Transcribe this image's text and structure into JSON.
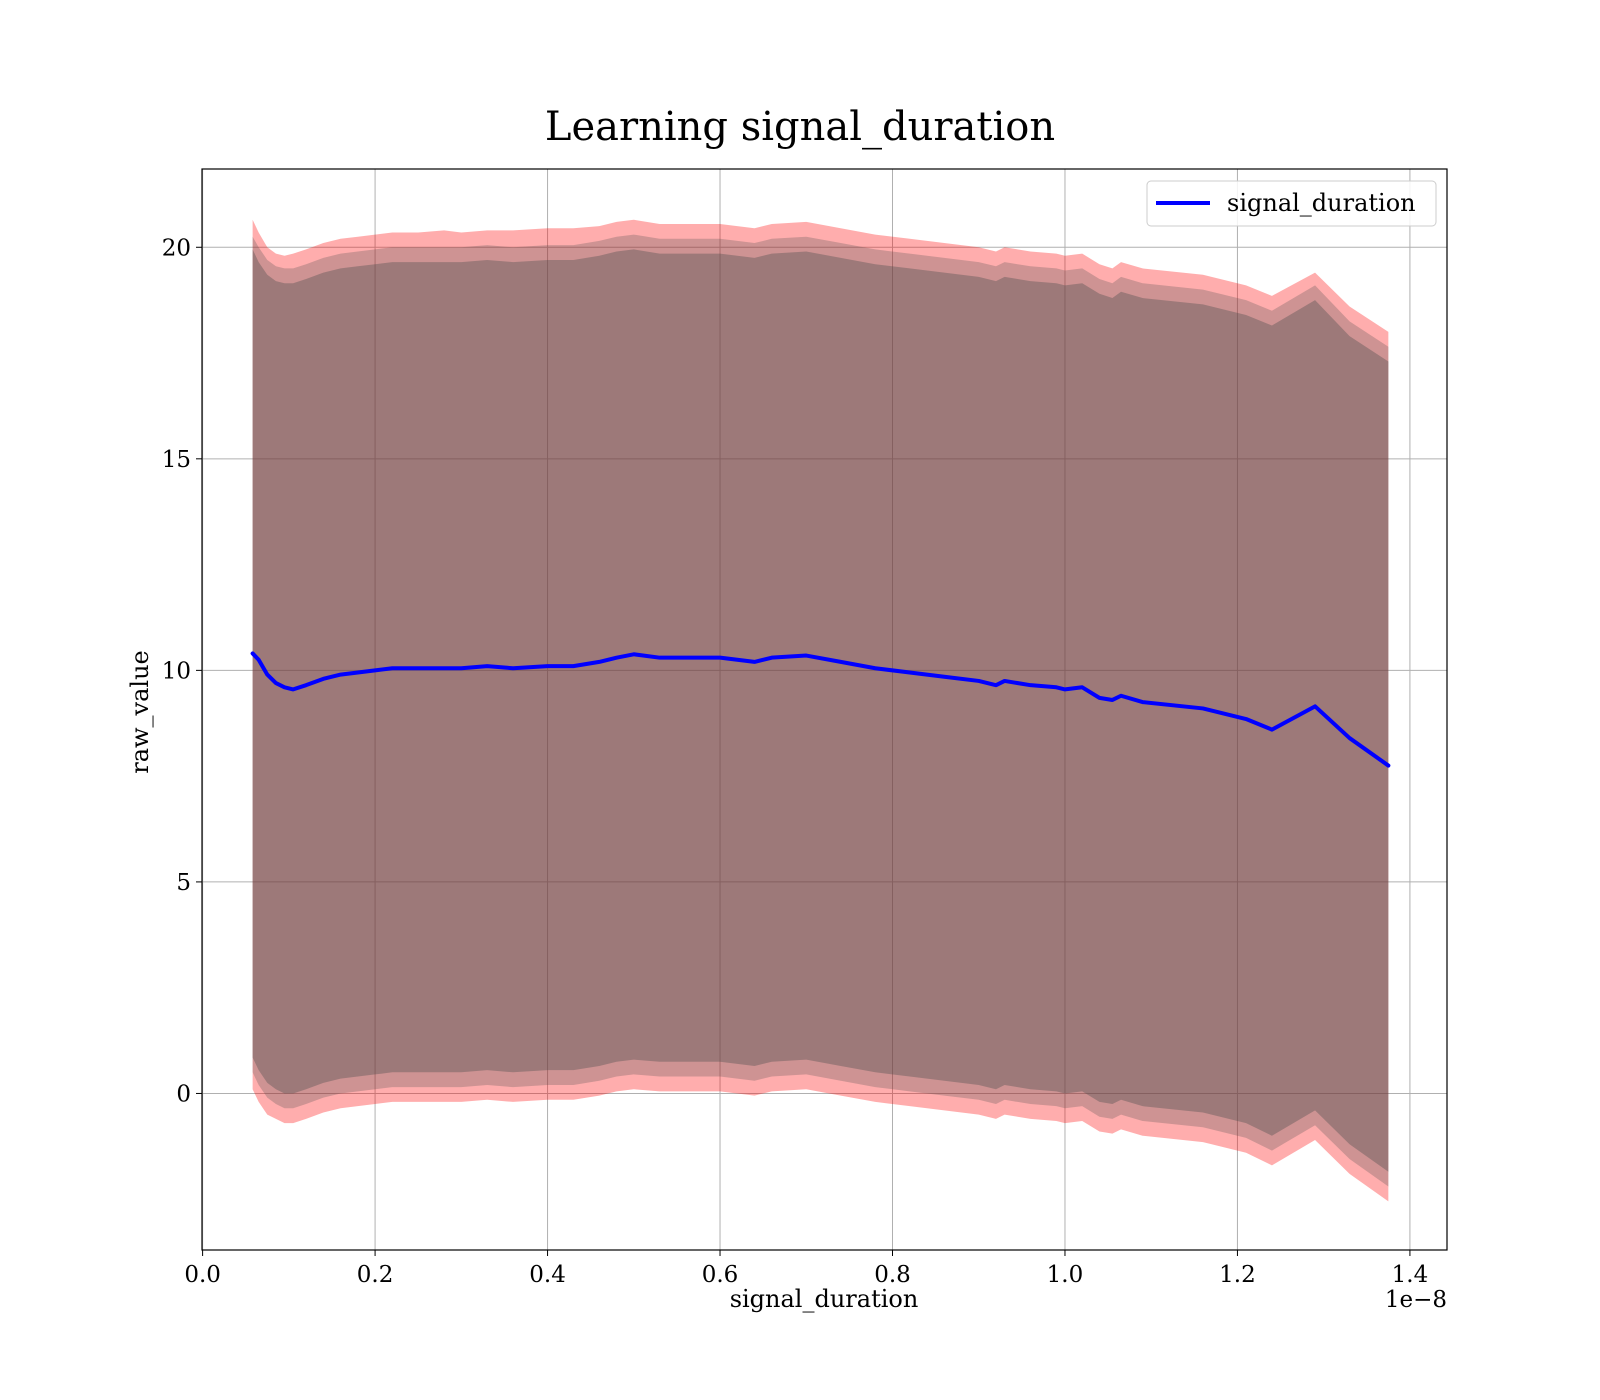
{
  "chart_data": {
    "type": "line",
    "title": "Learning signal_duration",
    "xlabel": "signal_duration",
    "ylabel": "raw_value",
    "x_offset_text": "1e−8",
    "x_ticks": [
      "0.0",
      "0.2",
      "0.4",
      "0.6",
      "0.8",
      "1.0",
      "1.2",
      "1.4"
    ],
    "y_ticks": [
      "0",
      "5",
      "10",
      "15",
      "20"
    ],
    "xlim": [
      -0.0007,
      1.443
    ],
    "ylim": [
      -3.7,
      21.85
    ],
    "grid": true,
    "legend_position": "top-right",
    "colors": {
      "line": "#0000ff",
      "band": "#ff0000",
      "inner_band": "#505050",
      "grid": "#b0b0b0"
    },
    "series": [
      {
        "name": "signal_duration",
        "x": [
          0.058,
          0.065,
          0.075,
          0.085,
          0.095,
          0.105,
          0.12,
          0.14,
          0.16,
          0.18,
          0.2,
          0.22,
          0.25,
          0.28,
          0.3,
          0.33,
          0.36,
          0.4,
          0.43,
          0.46,
          0.48,
          0.5,
          0.53,
          0.56,
          0.6,
          0.62,
          0.64,
          0.66,
          0.7,
          0.74,
          0.78,
          0.82,
          0.86,
          0.9,
          0.92,
          0.93,
          0.96,
          0.99,
          1.0,
          1.02,
          1.04,
          1.055,
          1.065,
          1.09,
          1.16,
          1.21,
          1.24,
          1.29,
          1.33,
          1.375
        ],
        "values": [
          10.4,
          10.25,
          9.9,
          9.7,
          9.6,
          9.55,
          9.65,
          9.8,
          9.9,
          9.95,
          10.0,
          10.05,
          10.05,
          10.05,
          10.05,
          10.1,
          10.05,
          10.1,
          10.1,
          10.2,
          10.3,
          10.38,
          10.3,
          10.3,
          10.3,
          10.25,
          10.2,
          10.3,
          10.35,
          10.2,
          10.05,
          9.95,
          9.85,
          9.75,
          9.65,
          9.75,
          9.65,
          9.6,
          9.55,
          9.6,
          9.35,
          9.3,
          9.4,
          9.25,
          9.1,
          8.85,
          8.6,
          9.15,
          8.4,
          7.75
        ]
      }
    ],
    "bands": {
      "outer_upper": [
        20.65,
        20.35,
        20.0,
        19.85,
        19.8,
        19.85,
        19.95,
        20.1,
        20.2,
        20.25,
        20.3,
        20.35,
        20.35,
        20.4,
        20.35,
        20.4,
        20.4,
        20.45,
        20.45,
        20.5,
        20.6,
        20.65,
        20.55,
        20.55,
        20.55,
        20.5,
        20.45,
        20.55,
        20.6,
        20.45,
        20.3,
        20.2,
        20.1,
        20.0,
        19.9,
        20.0,
        19.9,
        19.85,
        19.8,
        19.85,
        19.6,
        19.5,
        19.65,
        19.5,
        19.35,
        19.1,
        18.85,
        19.4,
        18.6,
        18.0
      ],
      "outer_lower": [
        0.1,
        -0.2,
        -0.5,
        -0.6,
        -0.7,
        -0.7,
        -0.6,
        -0.45,
        -0.35,
        -0.3,
        -0.25,
        -0.2,
        -0.2,
        -0.2,
        -0.2,
        -0.15,
        -0.2,
        -0.15,
        -0.15,
        -0.05,
        0.05,
        0.1,
        0.05,
        0.05,
        0.05,
        0.0,
        -0.05,
        0.05,
        0.1,
        -0.05,
        -0.2,
        -0.3,
        -0.4,
        -0.5,
        -0.6,
        -0.5,
        -0.6,
        -0.65,
        -0.7,
        -0.65,
        -0.9,
        -0.95,
        -0.85,
        -1.0,
        -1.15,
        -1.4,
        -1.7,
        -1.1,
        -1.9,
        -2.55
      ],
      "inner_upper": [
        20.25,
        20.0,
        19.7,
        19.55,
        19.5,
        19.5,
        19.6,
        19.75,
        19.85,
        19.9,
        19.95,
        20.0,
        20.0,
        20.0,
        20.0,
        20.05,
        20.0,
        20.05,
        20.05,
        20.15,
        20.25,
        20.3,
        20.2,
        20.2,
        20.2,
        20.15,
        20.1,
        20.2,
        20.25,
        20.1,
        19.95,
        19.85,
        19.75,
        19.65,
        19.55,
        19.65,
        19.55,
        19.5,
        19.45,
        19.5,
        19.25,
        19.15,
        19.3,
        19.15,
        19.0,
        18.75,
        18.5,
        19.1,
        18.25,
        17.65
      ],
      "inner_lower": [
        0.5,
        0.2,
        -0.1,
        -0.25,
        -0.35,
        -0.35,
        -0.25,
        -0.1,
        0.0,
        0.05,
        0.1,
        0.15,
        0.15,
        0.15,
        0.15,
        0.2,
        0.15,
        0.2,
        0.2,
        0.3,
        0.4,
        0.45,
        0.4,
        0.4,
        0.4,
        0.35,
        0.3,
        0.4,
        0.45,
        0.3,
        0.15,
        0.05,
        -0.05,
        -0.15,
        -0.25,
        -0.15,
        -0.25,
        -0.3,
        -0.35,
        -0.3,
        -0.55,
        -0.6,
        -0.5,
        -0.65,
        -0.8,
        -1.05,
        -1.35,
        -0.75,
        -1.55,
        -2.2
      ],
      "core_upper": [
        19.95,
        19.65,
        19.35,
        19.2,
        19.15,
        19.15,
        19.25,
        19.4,
        19.5,
        19.55,
        19.6,
        19.65,
        19.65,
        19.65,
        19.65,
        19.7,
        19.65,
        19.7,
        19.7,
        19.8,
        19.9,
        19.95,
        19.85,
        19.85,
        19.85,
        19.8,
        19.75,
        19.85,
        19.9,
        19.75,
        19.6,
        19.5,
        19.4,
        19.3,
        19.2,
        19.3,
        19.2,
        19.15,
        19.1,
        19.15,
        18.9,
        18.8,
        18.95,
        18.8,
        18.65,
        18.4,
        18.15,
        18.75,
        17.9,
        17.3
      ],
      "core_lower": [
        0.85,
        0.55,
        0.25,
        0.1,
        0.0,
        0.0,
        0.1,
        0.25,
        0.35,
        0.4,
        0.45,
        0.5,
        0.5,
        0.5,
        0.5,
        0.55,
        0.5,
        0.55,
        0.55,
        0.65,
        0.75,
        0.8,
        0.75,
        0.75,
        0.75,
        0.7,
        0.65,
        0.75,
        0.8,
        0.65,
        0.5,
        0.4,
        0.3,
        0.2,
        0.1,
        0.2,
        0.1,
        0.05,
        0.0,
        0.05,
        -0.2,
        -0.25,
        -0.15,
        -0.3,
        -0.45,
        -0.7,
        -1.0,
        -0.4,
        -1.2,
        -1.85
      ]
    }
  }
}
